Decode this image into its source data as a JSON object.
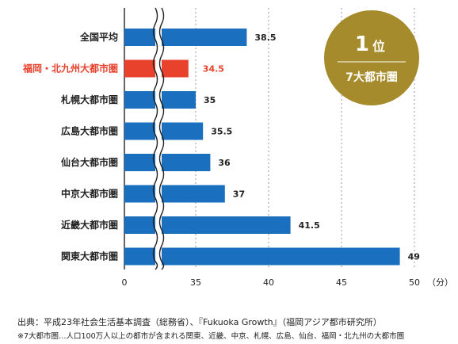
{
  "chart_data": {
    "type": "bar",
    "orientation": "horizontal",
    "categories": [
      "全国平均",
      "福岡・北九州大都市圏",
      "札幌大都市圏",
      "広島大都市圏",
      "仙台大都市圏",
      "中京大都市圏",
      "近畿大都市圏",
      "関東大都市圏"
    ],
    "values": [
      38.5,
      34.5,
      35,
      35.5,
      36,
      37,
      41.5,
      49
    ],
    "value_labels": [
      "38.5",
      "34.5",
      "35",
      "35.5",
      "36",
      "37",
      "41.5",
      "49"
    ],
    "highlight_index": 1,
    "x_ticks": [
      0,
      35,
      40,
      45,
      50
    ],
    "x_tick_labels": [
      "0",
      "35",
      "40",
      "45",
      "50"
    ],
    "x_unit": "（分）",
    "axis_break": [
      0,
      35
    ],
    "xlim": [
      30,
      50
    ],
    "grid": "vertical-dashed",
    "colors": {
      "bar": "#1a6fbf",
      "highlight": "#e8412c",
      "badge": "#a58b2b",
      "grid": "#9a9a9a"
    }
  },
  "badge": {
    "rank_number": "1",
    "rank_suffix": "位",
    "subtitle": "7大都市圏"
  },
  "footnotes": {
    "source": "出典：平成23年社会生活基本調査（総務省）、『Fukuoka Growth』（福岡アジア都市研究所）",
    "note": "※7大都市圏…人口100万人以上の都市が含まれる関東、近畿、中京、札幌、広島、仙台、福岡・北九州の大都市圏"
  }
}
